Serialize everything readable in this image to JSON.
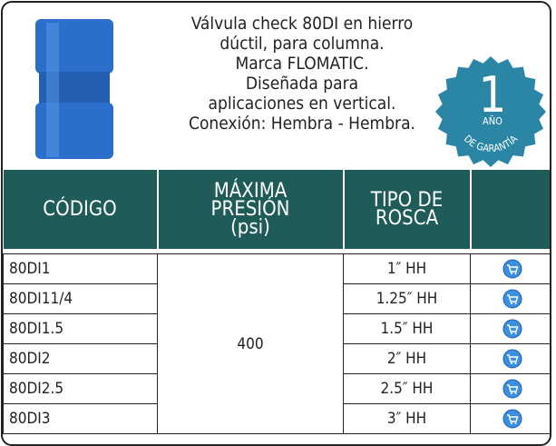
{
  "description": [
    "Válvula check 80DI en hierro",
    "dúctil, para columna.",
    "Marca FLOMATIC.",
    "Diseñada para",
    "aplicaciones en vertical.",
    "Conexión: Hembra - Hembra."
  ],
  "badge": {
    "number": "1",
    "year": "AÑO",
    "warranty": "DE GARANTÍA"
  },
  "table": {
    "headers": [
      [
        "CÓDIGO"
      ],
      [
        "MÁXIMA",
        "PRESIÓN",
        "(psi)"
      ],
      [
        "TIPO DE",
        "ROSCA"
      ]
    ],
    "pressure": "400",
    "rows": [
      [
        "80DI1",
        "1″ HH"
      ],
      [
        "80DI11/4",
        "1.25″ HH"
      ],
      [
        "80DI1.5",
        "1.5″ HH"
      ],
      [
        "80DI2",
        "2″ HH"
      ],
      [
        "80DI2.5",
        "2.5″ HH"
      ],
      [
        "80DI3",
        "3″ HH"
      ]
    ]
  }
}
